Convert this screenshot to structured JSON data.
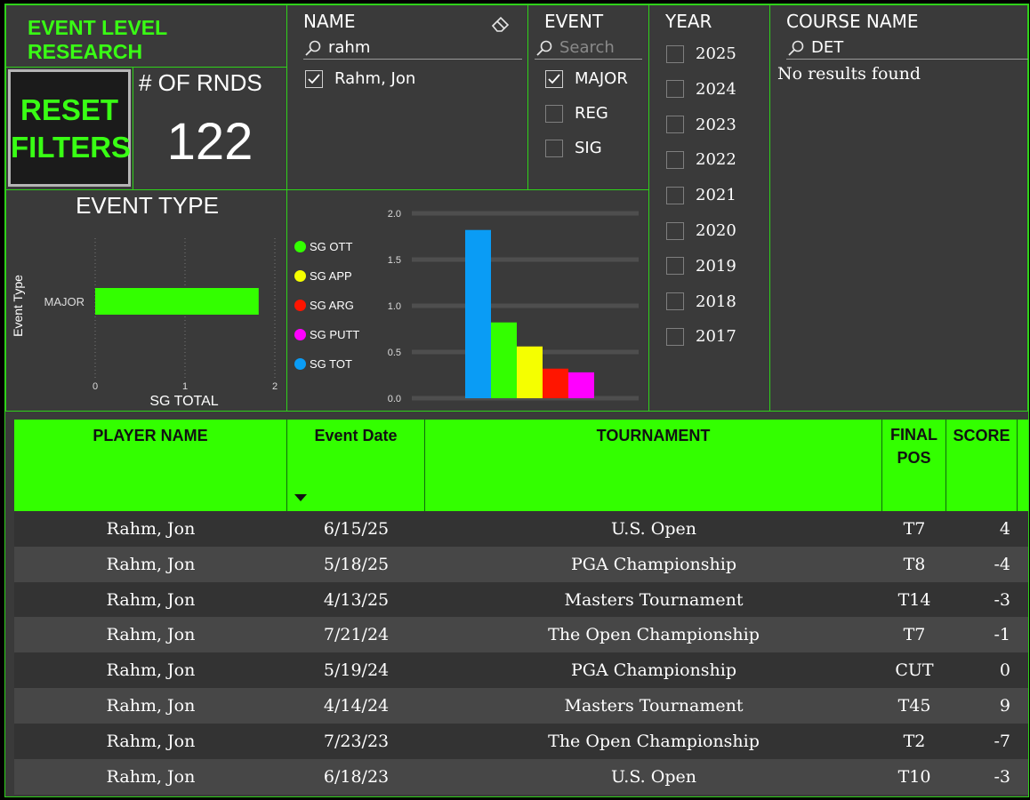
{
  "app": {
    "title": "EVENT LEVEL RESEARCH",
    "reset_label_line1": "RESET",
    "reset_label_line2": "FILTERS"
  },
  "kpi": {
    "label": "# OF RNDS",
    "value": "122"
  },
  "slicers": {
    "name": {
      "title": "NAME",
      "search_value": "rahm",
      "options": [
        {
          "label": "Rahm, Jon",
          "checked": true
        }
      ]
    },
    "event": {
      "title": "EVENT",
      "search_placeholder": "Search",
      "options": [
        {
          "label": "MAJOR",
          "checked": true
        },
        {
          "label": "REG",
          "checked": false
        },
        {
          "label": "SIG",
          "checked": false
        }
      ]
    },
    "year": {
      "title": "YEAR",
      "options": [
        "2025",
        "2024",
        "2023",
        "2022",
        "2021",
        "2020",
        "2019",
        "2018",
        "2017"
      ]
    },
    "course": {
      "title": "COURSE NAME",
      "search_value": "DET",
      "empty_text": "No results found"
    }
  },
  "chart_data": [
    {
      "type": "bar",
      "orientation": "horizontal",
      "title": "EVENT TYPE",
      "ylabel": "Event Type",
      "xlabel": "SG TOTAL",
      "categories": [
        "MAJOR"
      ],
      "values": [
        1.82
      ],
      "xlim": [
        0,
        2
      ],
      "x_ticks": [
        "0",
        "1",
        "2"
      ],
      "grid": "vertical dotted",
      "color": "#33ff00"
    },
    {
      "type": "bar",
      "title": "",
      "legend_position": "left",
      "ylim": [
        0,
        2.0
      ],
      "y_ticks": [
        "0.0",
        "0.5",
        "1.0",
        "1.5",
        "2.0"
      ],
      "grid": true,
      "series": [
        {
          "name": "SG TOT",
          "value": 1.82,
          "color": "#0a9cf5"
        },
        {
          "name": "SG OTT",
          "value": 0.82,
          "color": "#33ff00"
        },
        {
          "name": "SG APP",
          "value": 0.56,
          "color": "#f5ff00"
        },
        {
          "name": "SG ARG",
          "value": 0.32,
          "color": "#ff1500"
        },
        {
          "name": "SG PUTT",
          "value": 0.28,
          "color": "#ff00ff"
        }
      ],
      "legend_order": [
        "SG OTT",
        "SG APP",
        "SG ARG",
        "SG PUTT",
        "SG TOT"
      ]
    }
  ],
  "table": {
    "headers": {
      "player": "PLAYER NAME",
      "date": "Event Date",
      "tournament": "TOURNAMENT",
      "final_pos_1": "FINAL",
      "final_pos_2": "POS",
      "score": "SCORE"
    },
    "sort": "Event Date descending",
    "rows": [
      {
        "player": "Rahm, Jon",
        "date": "6/15/25",
        "tournament": "U.S. Open",
        "pos": "T7",
        "score": "4"
      },
      {
        "player": "Rahm, Jon",
        "date": "5/18/25",
        "tournament": "PGA Championship",
        "pos": "T8",
        "score": "-4"
      },
      {
        "player": "Rahm, Jon",
        "date": "4/13/25",
        "tournament": "Masters Tournament",
        "pos": "T14",
        "score": "-3"
      },
      {
        "player": "Rahm, Jon",
        "date": "7/21/24",
        "tournament": "The Open Championship",
        "pos": "T7",
        "score": "-1"
      },
      {
        "player": "Rahm, Jon",
        "date": "5/19/24",
        "tournament": "PGA Championship",
        "pos": "CUT",
        "score": "0"
      },
      {
        "player": "Rahm, Jon",
        "date": "4/14/24",
        "tournament": "Masters Tournament",
        "pos": "T45",
        "score": "9"
      },
      {
        "player": "Rahm, Jon",
        "date": "7/23/23",
        "tournament": "The Open Championship",
        "pos": "T2",
        "score": "-7"
      },
      {
        "player": "Rahm, Jon",
        "date": "6/18/23",
        "tournament": "U.S. Open",
        "pos": "T10",
        "score": "-3"
      }
    ]
  },
  "colors": {
    "accent_green": "#33ff00",
    "title_green": "#39ff14",
    "border_green": "#2fd11a",
    "background": "#3a3a3a",
    "row_dark": "#333333",
    "row_light": "#474747"
  }
}
